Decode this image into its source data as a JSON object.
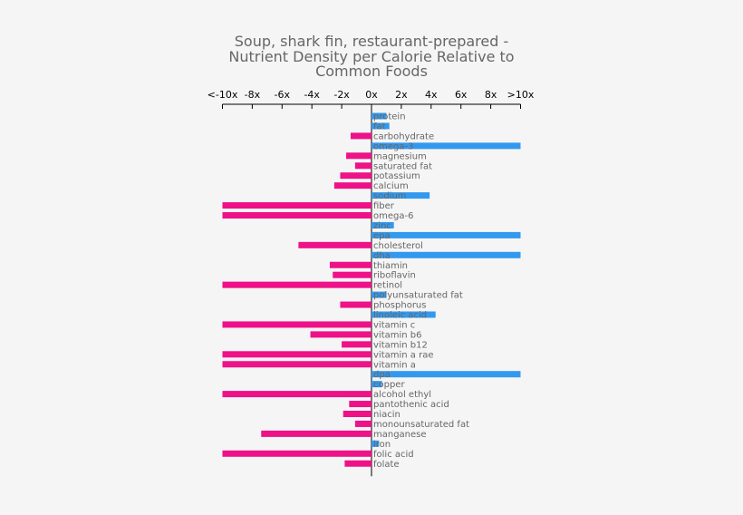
{
  "chart_data": {
    "type": "bar",
    "orientation": "horizontal",
    "title": "Soup, shark fin, restaurant-prepared - Nutrient Density per Calorie Relative to Common Foods",
    "xlim": [
      -10,
      10
    ],
    "x_tick_labels": [
      "<-10x",
      "-8x",
      "-6x",
      "-4x",
      "-2x",
      "0x",
      "2x",
      "4x",
      "6x",
      "8x",
      ">10x"
    ],
    "x_tick_values": [
      -10,
      -8,
      -6,
      -4,
      -2,
      0,
      2,
      4,
      6,
      8,
      10
    ],
    "colors": {
      "positive": "#3399ee",
      "negative": "#ee1188"
    },
    "categories": [
      "protein",
      "fat",
      "carbohydrate",
      "omega-3",
      "magnesium",
      "saturated fat",
      "potassium",
      "calcium",
      "sodium",
      "fiber",
      "omega-6",
      "zinc",
      "epa",
      "cholesterol",
      "dha",
      "thiamin",
      "riboflavin",
      "retinol",
      "polyunsaturated fat",
      "phosphorus",
      "linoleic acid",
      "vitamin c",
      "vitamin b6",
      "vitamin b12",
      "vitamin a rae",
      "vitamin a",
      "dpa",
      "copper",
      "alcohol ethyl",
      "pantothenic acid",
      "niacin",
      "monounsaturated fat",
      "manganese",
      "iron",
      "folic acid",
      "folate"
    ],
    "values": [
      1.0,
      1.2,
      -1.4,
      10,
      -1.7,
      -1.1,
      -2.1,
      -2.5,
      3.9,
      -10,
      -10,
      1.5,
      10,
      -4.9,
      10,
      -2.8,
      -2.6,
      -10,
      1.0,
      -2.1,
      4.3,
      -10,
      -4.1,
      -2.0,
      -10,
      -10,
      10,
      0.7,
      -10,
      -1.5,
      -1.9,
      -1.1,
      -7.4,
      0.5,
      -10,
      -1.8
    ]
  }
}
